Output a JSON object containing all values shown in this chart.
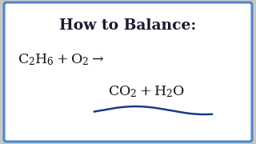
{
  "title": "How to Balance:",
  "line1_text": "C",
  "line2_text": "CO",
  "bg_outer": "#c8c8c8",
  "bg_inner": "#ffffff",
  "border_color": "#4f86c6",
  "text_color": "#1a1a2e",
  "title_color": "#1a1a2e",
  "eq_color": "#111111",
  "wave_color": "#1a3a8a",
  "border_lw": 2.2,
  "title_fontsize": 13.5,
  "eq_fontsize": 12.5
}
